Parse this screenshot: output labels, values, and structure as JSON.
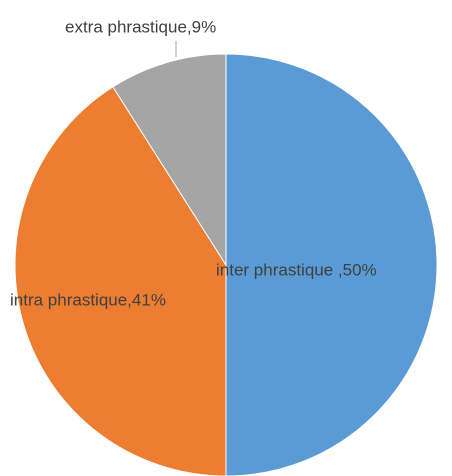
{
  "chart_data": {
    "type": "pie",
    "values": [
      50,
      41,
      9
    ],
    "value_labels": [
      "inter phrastique ,50%",
      "intra phrastique,41%",
      "extra phrastique,9%"
    ],
    "colors": [
      "#5b9bd5",
      "#ed7d31",
      "#a5a5a5"
    ]
  }
}
